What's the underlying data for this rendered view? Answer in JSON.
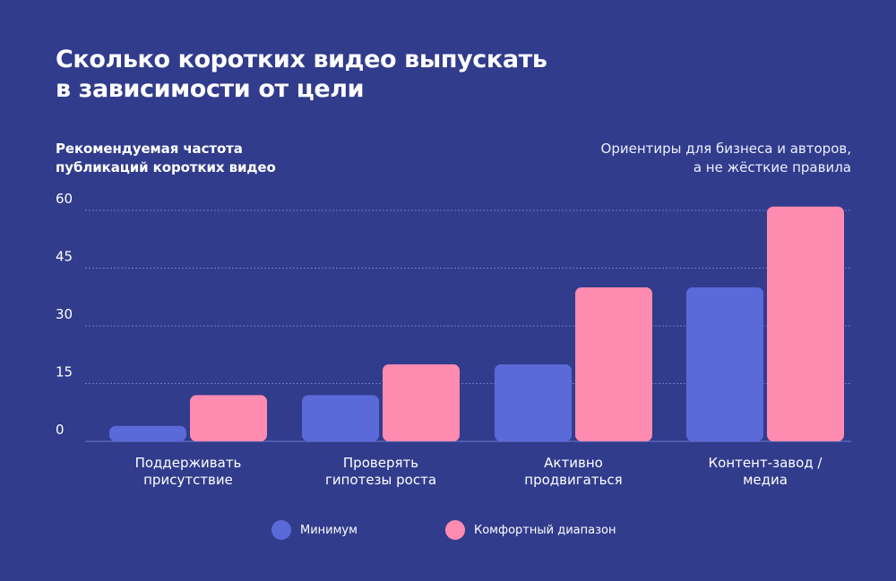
{
  "title": {
    "line1": "Сколько коротких видео выпускать",
    "line2": "в зависимости от цели"
  },
  "y_caption": {
    "line1": "Рекомендуемая частота",
    "line2": "публикаций коротких видео"
  },
  "note": {
    "line1": "Ориентиры для бизнеса и авторов,",
    "line2": "а не жёсткие правила"
  },
  "colors": {
    "background": "#313c8c",
    "minimum": "#5a6ad8",
    "comfort": "#ff8bb0",
    "grid": "#6e78c8",
    "text": "#ffffff"
  },
  "chart_data": {
    "type": "bar",
    "categories": [
      [
        "Поддерживать",
        "присутствие"
      ],
      [
        "Проверять",
        "гипотезы роста"
      ],
      [
        "Активно",
        "продвигаться"
      ],
      [
        "Контент-завод /",
        "медиа"
      ]
    ],
    "series": [
      {
        "name": "Минимум",
        "color": "#5a6ad8",
        "values": [
          4,
          12,
          20,
          40
        ]
      },
      {
        "name": "Комфортный диапазон",
        "color": "#ff8bb0",
        "values": [
          12,
          20,
          40,
          61
        ]
      }
    ],
    "yticks": [
      0,
      15,
      30,
      45,
      60
    ],
    "ylim": [
      0,
      60
    ],
    "grid": true,
    "legend_position": "bottom-center"
  }
}
